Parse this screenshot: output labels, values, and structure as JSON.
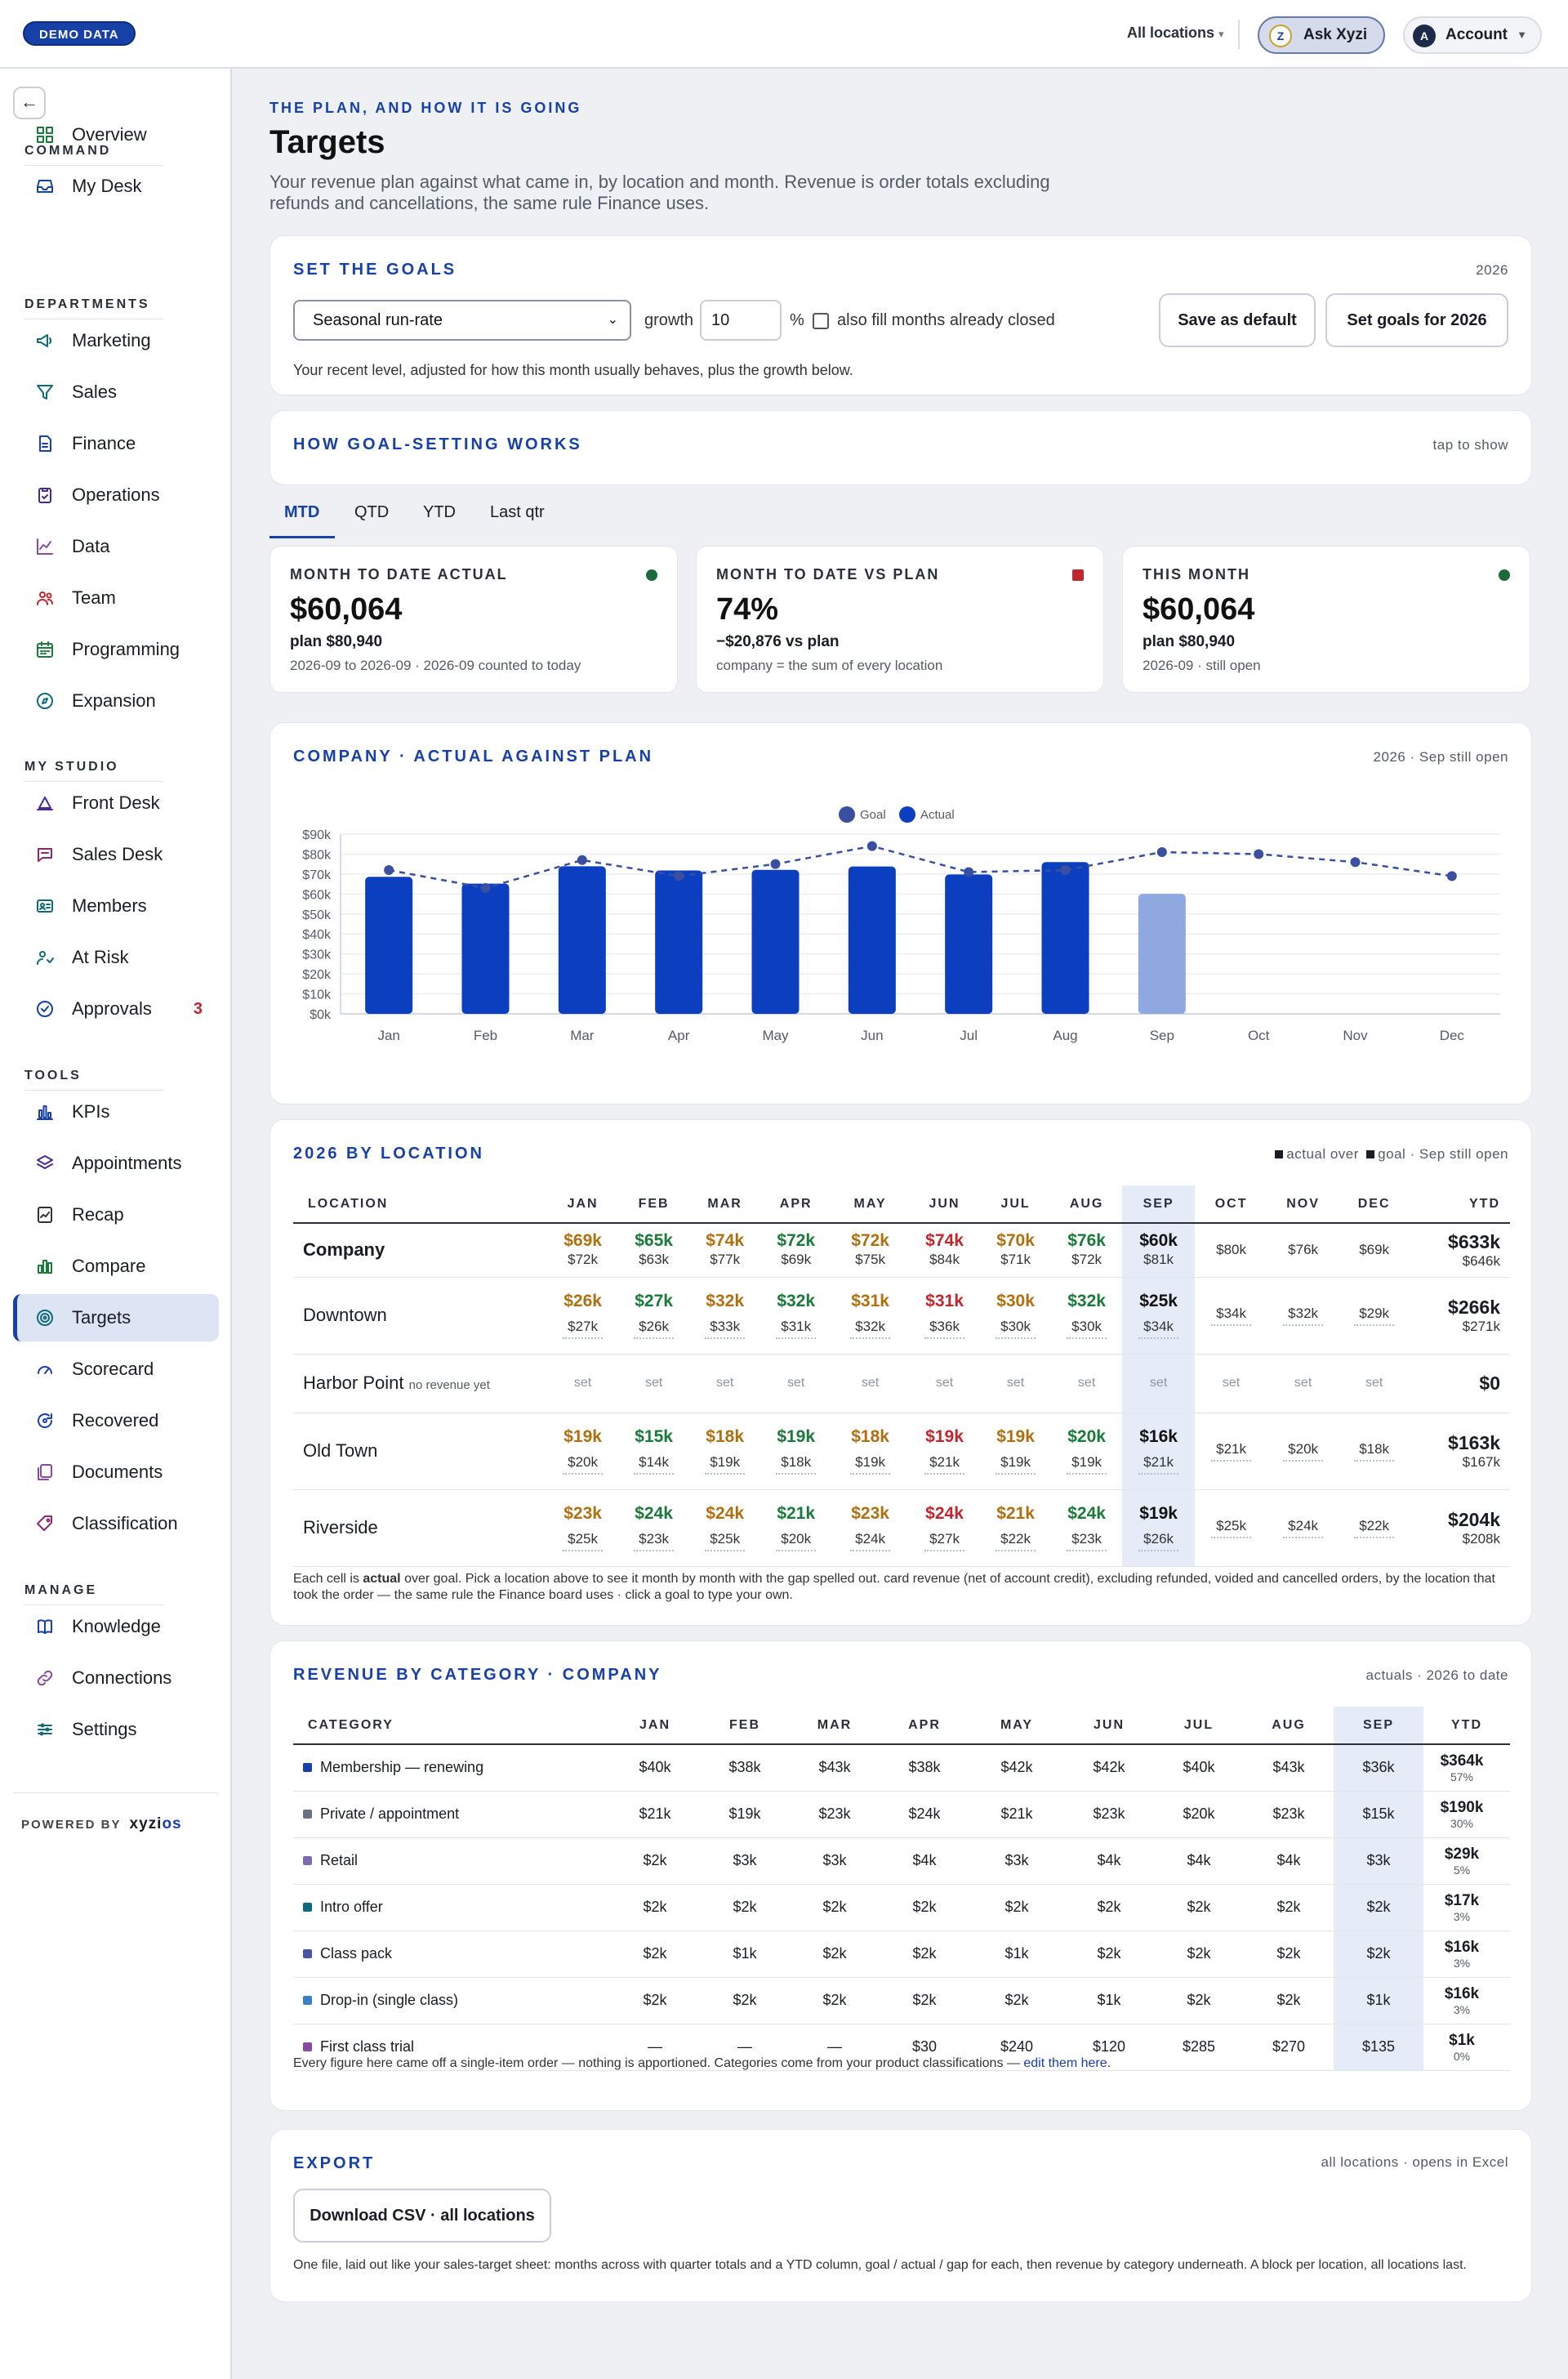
{
  "topbar": {
    "demo_badge": "DEMO DATA",
    "locations": "All locations",
    "ask": "Ask Xyzi",
    "account": "Account",
    "account_initial": "A"
  },
  "sidebar": {
    "sections": [
      {
        "label": "COMMAND"
      },
      {
        "label": "DEPARTMENTS"
      },
      {
        "label": "MY STUDIO"
      },
      {
        "label": "TOOLS"
      },
      {
        "label": "MANAGE"
      }
    ],
    "items": [
      {
        "label": "Overview",
        "icon": "grid-icon"
      },
      {
        "label": "My Desk",
        "icon": "inbox-icon"
      },
      {
        "label": "Marketing",
        "icon": "megaphone-icon"
      },
      {
        "label": "Sales",
        "icon": "funnel-icon"
      },
      {
        "label": "Finance",
        "icon": "document-icon"
      },
      {
        "label": "Operations",
        "icon": "clipboard-icon"
      },
      {
        "label": "Data",
        "icon": "line-chart-icon"
      },
      {
        "label": "Team",
        "icon": "people-icon"
      },
      {
        "label": "Programming",
        "icon": "calendar-icon"
      },
      {
        "label": "Expansion",
        "icon": "compass-icon"
      },
      {
        "label": "Front Desk",
        "icon": "bell-icon"
      },
      {
        "label": "Sales Desk",
        "icon": "chat-icon"
      },
      {
        "label": "Members",
        "icon": "id-card-icon"
      },
      {
        "label": "At Risk",
        "icon": "user-alert-icon"
      },
      {
        "label": "Approvals",
        "icon": "check-circle-icon",
        "badge": "3"
      },
      {
        "label": "KPIs",
        "icon": "bar-chart-icon"
      },
      {
        "label": "Appointments",
        "icon": "layers-icon"
      },
      {
        "label": "Recap",
        "icon": "trend-doc-icon"
      },
      {
        "label": "Compare",
        "icon": "compare-bars-icon"
      },
      {
        "label": "Targets",
        "icon": "target-icon"
      },
      {
        "label": "Scorecard",
        "icon": "gauge-icon"
      },
      {
        "label": "Recovered",
        "icon": "refresh-icon"
      },
      {
        "label": "Documents",
        "icon": "files-icon"
      },
      {
        "label": "Classification",
        "icon": "tag-icon"
      },
      {
        "label": "Knowledge",
        "icon": "book-icon"
      },
      {
        "label": "Connections",
        "icon": "link-icon"
      },
      {
        "label": "Settings",
        "icon": "sliders-icon"
      }
    ],
    "powered_by": "POWERED BY",
    "brand_a": "xyzi",
    "brand_b": "os"
  },
  "page": {
    "eyebrow": "THE PLAN, AND HOW IT IS GOING",
    "title": "Targets",
    "subtitle": "Your revenue plan against what came in, by location and month. Revenue is order totals excluding refunds and cancellations, the same rule Finance uses."
  },
  "goals": {
    "title": "SET THE GOALS",
    "year": "2026",
    "method": "Seasonal run-rate",
    "growth_label": "growth",
    "growth_value": "10",
    "pct": "%",
    "fill_closed": "also fill months already closed",
    "save_default": "Save as default",
    "set_goals": "Set goals for 2026",
    "help": "Your recent level, adjusted for how this month usually behaves, plus the growth below."
  },
  "how": {
    "title": "HOW GOAL-SETTING WORKS",
    "toggle": "tap to show"
  },
  "tabs": [
    "MTD",
    "QTD",
    "YTD",
    "Last qtr"
  ],
  "kpis": [
    {
      "label": "MONTH TO DATE ACTUAL",
      "value": "$60,064",
      "sub1": "plan $80,940",
      "sub2": "2026-09 to 2026-09 · 2026-09 counted to today",
      "status": "#1a6a3a"
    },
    {
      "label": "MONTH TO DATE VS PLAN",
      "value": "74%",
      "sub1": "−$20,876 vs plan",
      "sub2": "company = the sum of every location",
      "status": "#c0262d"
    },
    {
      "label": "THIS MONTH",
      "value": "$60,064",
      "sub1": "plan $80,940",
      "sub2": "2026-09 · still open",
      "status": "#1a6a3a"
    }
  ],
  "chart_card": {
    "title": "COMPANY · ACTUAL AGAINST PLAN",
    "meta": "2026 · Sep still open"
  },
  "chart_data": {
    "type": "bar",
    "title": "COMPANY · ACTUAL AGAINST PLAN",
    "categories": [
      "Jan",
      "Feb",
      "Mar",
      "Apr",
      "May",
      "Jun",
      "Jul",
      "Aug",
      "Sep",
      "Oct",
      "Nov",
      "Dec"
    ],
    "series": [
      {
        "name": "Actual",
        "type": "bar",
        "color": "#0b3fbf",
        "values": [
          68.6,
          65.2,
          73.9,
          71.8,
          72.1,
          73.8,
          69.8,
          76.0,
          60.1,
          null,
          null,
          null
        ]
      },
      {
        "name": "Goal",
        "type": "line",
        "color": "#3a4fa0",
        "values": [
          72,
          63,
          77,
          69,
          75,
          84,
          71,
          72,
          81,
          80,
          76,
          69
        ]
      }
    ],
    "open_month": "Sep",
    "yticks": [
      "$0k",
      "$10k",
      "$20k",
      "$30k",
      "$40k",
      "$50k",
      "$60k",
      "$70k",
      "$80k",
      "$90k"
    ],
    "ylim": [
      0,
      90
    ],
    "legend": [
      "Goal",
      "Actual"
    ],
    "grid": true
  },
  "location_card": {
    "title": "2026 BY LOCATION",
    "legend_a": "actual over",
    "legend_b": "goal · Sep still open",
    "headers": [
      "LOCATION",
      "JAN",
      "FEB",
      "MAR",
      "APR",
      "MAY",
      "JUN",
      "JUL",
      "AUG",
      "SEP",
      "OCT",
      "NOV",
      "DEC",
      "YTD"
    ],
    "rows": [
      {
        "name": "Company",
        "note": "",
        "bold": true,
        "cells": [
          [
            "$69k",
            "$72k",
            "near"
          ],
          [
            "$65k",
            "$63k",
            "over"
          ],
          [
            "$74k",
            "$77k",
            "near"
          ],
          [
            "$72k",
            "$69k",
            "over"
          ],
          [
            "$72k",
            "$75k",
            "near"
          ],
          [
            "$74k",
            "$84k",
            "under"
          ],
          [
            "$70k",
            "$71k",
            "near"
          ],
          [
            "$76k",
            "$72k",
            "over"
          ],
          [
            "$60k",
            "$81k",
            "plain"
          ],
          [
            "",
            "$80k",
            ""
          ],
          [
            "",
            "$76k",
            ""
          ],
          [
            "",
            "$69k",
            ""
          ]
        ],
        "ytd": "$633k",
        "ytd_goal": "$646k"
      },
      {
        "name": "Downtown",
        "note": "",
        "bold": false,
        "cells": [
          [
            "$26k",
            "$27k",
            "near"
          ],
          [
            "$27k",
            "$26k",
            "over"
          ],
          [
            "$32k",
            "$33k",
            "near"
          ],
          [
            "$32k",
            "$31k",
            "over"
          ],
          [
            "$31k",
            "$32k",
            "near"
          ],
          [
            "$31k",
            "$36k",
            "under"
          ],
          [
            "$30k",
            "$30k",
            "near"
          ],
          [
            "$32k",
            "$30k",
            "over"
          ],
          [
            "$25k",
            "$34k",
            "plain"
          ],
          [
            "",
            "$34k",
            ""
          ],
          [
            "",
            "$32k",
            ""
          ],
          [
            "",
            "$29k",
            ""
          ]
        ],
        "ytd": "$266k",
        "ytd_goal": "$271k"
      },
      {
        "name": "Harbor Point",
        "note": "no revenue yet",
        "bold": false,
        "cells": [
          [
            "",
            "set",
            "set"
          ],
          [
            "",
            "set",
            "set"
          ],
          [
            "",
            "set",
            "set"
          ],
          [
            "",
            "set",
            "set"
          ],
          [
            "",
            "set",
            "set"
          ],
          [
            "",
            "set",
            "set"
          ],
          [
            "",
            "set",
            "set"
          ],
          [
            "",
            "set",
            "set"
          ],
          [
            "",
            "set",
            "set"
          ],
          [
            "",
            "set",
            "set"
          ],
          [
            "",
            "set",
            "set"
          ],
          [
            "",
            "set",
            "set"
          ]
        ],
        "ytd": "$0",
        "ytd_goal": ""
      },
      {
        "name": "Old Town",
        "note": "",
        "bold": false,
        "cells": [
          [
            "$19k",
            "$20k",
            "near"
          ],
          [
            "$15k",
            "$14k",
            "over"
          ],
          [
            "$18k",
            "$19k",
            "near"
          ],
          [
            "$19k",
            "$18k",
            "over"
          ],
          [
            "$18k",
            "$19k",
            "near"
          ],
          [
            "$19k",
            "$21k",
            "under"
          ],
          [
            "$19k",
            "$19k",
            "near"
          ],
          [
            "$20k",
            "$19k",
            "over"
          ],
          [
            "$16k",
            "$21k",
            "plain"
          ],
          [
            "",
            "$21k",
            ""
          ],
          [
            "",
            "$20k",
            ""
          ],
          [
            "",
            "$18k",
            ""
          ]
        ],
        "ytd": "$163k",
        "ytd_goal": "$167k"
      },
      {
        "name": "Riverside",
        "note": "",
        "bold": false,
        "cells": [
          [
            "$23k",
            "$25k",
            "near"
          ],
          [
            "$24k",
            "$23k",
            "over"
          ],
          [
            "$24k",
            "$25k",
            "near"
          ],
          [
            "$21k",
            "$20k",
            "over"
          ],
          [
            "$23k",
            "$24k",
            "near"
          ],
          [
            "$24k",
            "$27k",
            "under"
          ],
          [
            "$21k",
            "$22k",
            "near"
          ],
          [
            "$24k",
            "$23k",
            "over"
          ],
          [
            "$19k",
            "$26k",
            "plain"
          ],
          [
            "",
            "$25k",
            ""
          ],
          [
            "",
            "$24k",
            ""
          ],
          [
            "",
            "$22k",
            ""
          ]
        ],
        "ytd": "$204k",
        "ytd_goal": "$208k"
      }
    ],
    "note_a": "Each cell is ",
    "note_b": "actual",
    "note_c": " over goal. Pick a location above to see it month by month with the gap spelled out. card revenue (net of account credit), excluding refunded, voided and cancelled orders, by the location that took the order — the same rule the Finance board uses · click a goal to type your own."
  },
  "category_card": {
    "title": "REVENUE BY CATEGORY · COMPANY",
    "meta": "actuals · 2026 to date",
    "headers": [
      "CATEGORY",
      "JAN",
      "FEB",
      "MAR",
      "APR",
      "MAY",
      "JUN",
      "JUL",
      "AUG",
      "SEP",
      "YTD"
    ],
    "rows": [
      {
        "name": "Membership — renewing",
        "color": "#1741a6",
        "values": [
          "$40k",
          "$38k",
          "$43k",
          "$38k",
          "$42k",
          "$42k",
          "$40k",
          "$43k",
          "$36k"
        ],
        "ytd": "$364k",
        "pct": "57%"
      },
      {
        "name": "Private / appointment",
        "color": "#6b7280",
        "values": [
          "$21k",
          "$19k",
          "$23k",
          "$24k",
          "$21k",
          "$23k",
          "$20k",
          "$23k",
          "$15k"
        ],
        "ytd": "$190k",
        "pct": "30%"
      },
      {
        "name": "Retail",
        "color": "#7c6bb0",
        "values": [
          "$2k",
          "$3k",
          "$3k",
          "$4k",
          "$3k",
          "$4k",
          "$4k",
          "$4k",
          "$3k"
        ],
        "ytd": "$29k",
        "pct": "5%"
      },
      {
        "name": "Intro offer",
        "color": "#0f6b7a",
        "values": [
          "$2k",
          "$2k",
          "$2k",
          "$2k",
          "$2k",
          "$2k",
          "$2k",
          "$2k",
          "$2k"
        ],
        "ytd": "$17k",
        "pct": "3%"
      },
      {
        "name": "Class pack",
        "color": "#4a55a0",
        "values": [
          "$2k",
          "$1k",
          "$2k",
          "$2k",
          "$1k",
          "$2k",
          "$2k",
          "$2k",
          "$2k"
        ],
        "ytd": "$16k",
        "pct": "3%"
      },
      {
        "name": "Drop-in (single class)",
        "color": "#3a7fc0",
        "values": [
          "$2k",
          "$2k",
          "$2k",
          "$2k",
          "$2k",
          "$1k",
          "$2k",
          "$2k",
          "$1k"
        ],
        "ytd": "$16k",
        "pct": "3%"
      },
      {
        "name": "First class trial",
        "color": "#8a4aa0",
        "values": [
          "—",
          "—",
          "—",
          "$30",
          "$240",
          "$120",
          "$285",
          "$270",
          "$135"
        ],
        "ytd": "$1k",
        "pct": "0%"
      }
    ],
    "note": "Every figure here came off a single-item order — nothing is apportioned. Categories come from your product classifications — ",
    "note_link": "edit them here."
  },
  "export_card": {
    "title": "EXPORT",
    "meta": "all locations · opens in Excel",
    "button": "Download CSV · all locations",
    "note": "One file, laid out like your sales-target sheet: months across with quarter totals and a YTD column, goal / actual / gap for each, then revenue by category underneath. A block per location, all locations last."
  }
}
